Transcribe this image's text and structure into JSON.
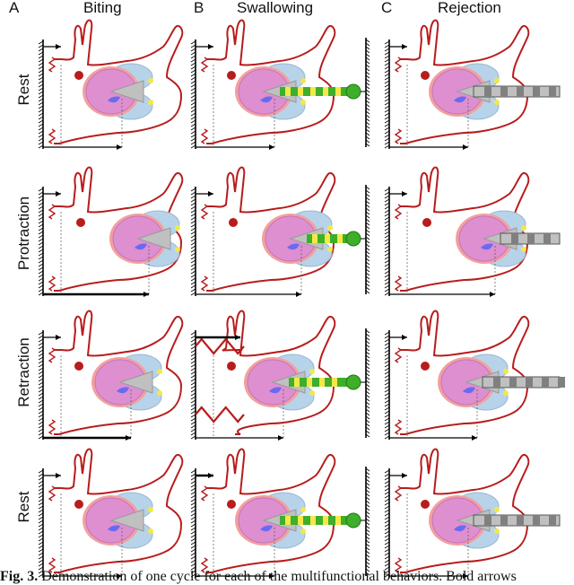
{
  "figure": {
    "columns": [
      {
        "letter": "A",
        "title": "Biting"
      },
      {
        "letter": "B",
        "title": "Swallowing"
      },
      {
        "letter": "C",
        "title": "Rejection"
      }
    ],
    "rows": [
      "Rest",
      "Protraction",
      "Retraction",
      "Rest"
    ],
    "colors": {
      "body_outline": "#b81c1c",
      "eye": "#b81c1c",
      "odontophore": "#dd8fd0",
      "odontophore_ring": "#f2a0a0",
      "jaw": "#b7d3ea",
      "radula": "#c0c0c0",
      "radula_dark": "#808080",
      "seaweed_green": "#3fae2a",
      "seaweed_yellow": "#f3e84a",
      "muscle_blue": "#6a6af0",
      "spring": "#b81c1c"
    }
  },
  "caption": {
    "label": "Fig. 3.",
    "text": "Demonstration of one cycle for each of the multifunctional behaviors. Bold arrows"
  }
}
